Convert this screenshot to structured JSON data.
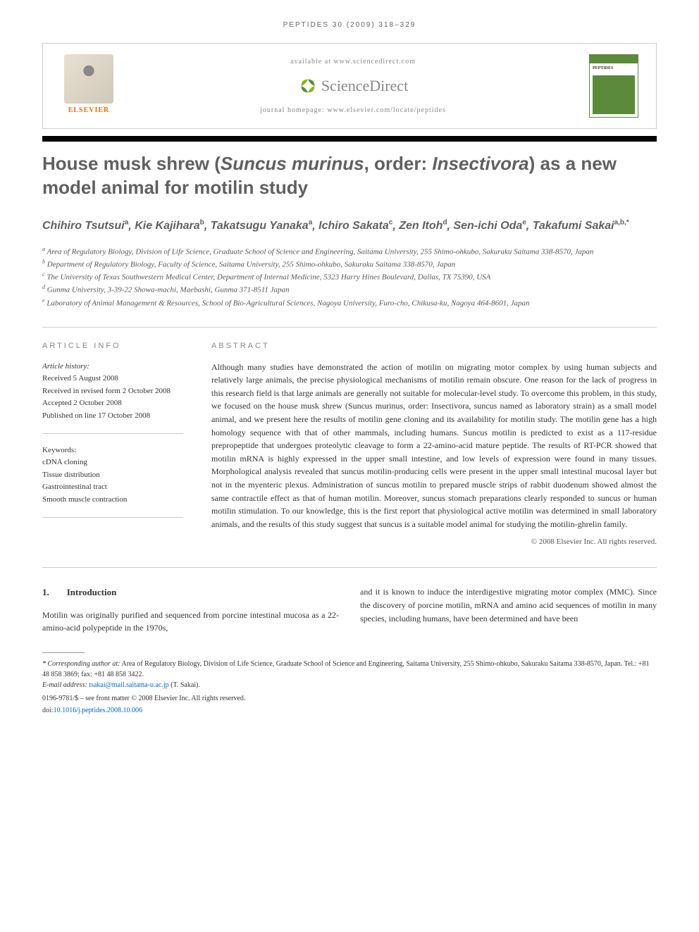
{
  "running_header": "PEPTIDES 30 (2009) 318–329",
  "header": {
    "available_text": "available at www.sciencedirect.com",
    "sd_brand": "ScienceDirect",
    "homepage_text": "journal homepage: www.elsevier.com/locate/peptides",
    "elsevier_label": "ELSEVIER",
    "journal_cover_title": "PEPTIDES"
  },
  "title_parts": {
    "p1": "House musk shrew (",
    "p2": "Suncus murinus",
    "p3": ", order: ",
    "p4": "Insectivora",
    "p5": ") as a new model animal for motilin study"
  },
  "authors": [
    {
      "name": "Chihiro Tsutsui",
      "sup": "a"
    },
    {
      "name": "Kie Kajihara",
      "sup": "b"
    },
    {
      "name": "Takatsugu Yanaka",
      "sup": "a"
    },
    {
      "name": "Ichiro Sakata",
      "sup": "c"
    },
    {
      "name": "Zen Itoh",
      "sup": "d"
    },
    {
      "name": "Sen-ichi Oda",
      "sup": "e"
    },
    {
      "name": "Takafumi Sakai",
      "sup": "a,b,*"
    }
  ],
  "affiliations": [
    {
      "sup": "a",
      "text": "Area of Regulatory Biology, Division of Life Science, Graduate School of Science and Engineering, Saitama University, 255 Shimo-ohkubo, Sakuraku Saitama 338-8570, Japan"
    },
    {
      "sup": "b",
      "text": "Department of Regulatory Biology, Faculty of Science, Saitama University, 255 Shimo-ohkubo, Sakuraku Saitama 338-8570, Japan"
    },
    {
      "sup": "c",
      "text": "The University of Texas Southwestern Medical Center, Department of Internal Medicine, 5323 Harry Hines Boulevard, Dallas, TX 75390, USA"
    },
    {
      "sup": "d",
      "text": "Gunma University, 3-39-22 Showa-machi, Maebashi, Gunma 371-8511 Japan"
    },
    {
      "sup": "e",
      "text": "Laboratory of Animal Management & Resources, School of Bio-Agricultural Sciences, Nagoya University, Furo-cho, Chikusa-ku, Nagoya 464-8601, Japan"
    }
  ],
  "article_info": {
    "label": "ARTICLE INFO",
    "history_label": "Article history:",
    "received": "Received 5 August 2008",
    "revised": "Received in revised form 2 October 2008",
    "accepted": "Accepted 2 October 2008",
    "published": "Published on line 17 October 2008",
    "keywords_label": "Keywords:",
    "keywords": [
      "cDNA cloning",
      "Tissue distribution",
      "Gastrointestinal tract",
      "Smooth muscle contraction"
    ]
  },
  "abstract": {
    "label": "ABSTRACT",
    "text": "Although many studies have demonstrated the action of motilin on migrating motor complex by using human subjects and relatively large animals, the precise physiological mechanisms of motilin remain obscure. One reason for the lack of progress in this research field is that large animals are generally not suitable for molecular-level study. To overcome this problem, in this study, we focused on the house musk shrew (Suncus murinus, order: Insectivora, suncus named as laboratory strain) as a small model animal, and we present here the results of motilin gene cloning and its availability for motilin study. The motilin gene has a high homology sequence with that of other mammals, including humans. Suncus motilin is predicted to exist as a 117-residue prepropeptide that undergoes proteolytic cleavage to form a 22-amino-acid mature peptide. The results of RT-PCR showed that motilin mRNA is highly expressed in the upper small intestine, and low levels of expression were found in many tissues. Morphological analysis revealed that suncus motilin-producing cells were present in the upper small intestinal mucosal layer but not in the myenteric plexus. Administration of suncus motilin to prepared muscle strips of rabbit duodenum showed almost the same contractile effect as that of human motilin. Moreover, suncus stomach preparations clearly responded to suncus or human motilin stimulation. To our knowledge, this is the first report that physiological active motilin was determined in small laboratory animals, and the results of this study suggest that suncus is a suitable model animal for studying the motilin-ghrelin family.",
    "copyright": "© 2008 Elsevier Inc. All rights reserved."
  },
  "body": {
    "section_num": "1.",
    "section_title": "Introduction",
    "col1": "Motilin was originally purified and sequenced from porcine intestinal mucosa as a 22-amino-acid polypeptide in the 1970s,",
    "col2": "and it is known to induce the interdigestive migrating motor complex (MMC). Since the discovery of porcine motilin, mRNA and amino acid sequences of motilin in many species, including humans, have been determined and have been"
  },
  "footnotes": {
    "corresponding_label": "* Corresponding author at:",
    "corresponding_text": " Area of Regulatory Biology, Division of Life Science, Graduate School of Science and Engineering, Saitama University, 255 Shimo-ohkubo, Sakuraku Saitama 338-8570, Japan. Tel.: +81 48 858 3869; fax: +81 48 858 3422.",
    "email_label": "E-mail address: ",
    "email": "tsakai@mail.saitama-u.ac.jp",
    "email_suffix": " (T. Sakai).",
    "issn_line": "0196-9781/$ – see front matter © 2008 Elsevier Inc. All rights reserved.",
    "doi_prefix": "doi:",
    "doi": "10.1016/j.peptides.2008.10.006"
  },
  "colors": {
    "elsevier_orange": "#ff6600",
    "title_gray": "#606060",
    "link_blue": "#0066cc",
    "journal_green": "#5a8a3a",
    "sd_green": "#7fba00"
  }
}
